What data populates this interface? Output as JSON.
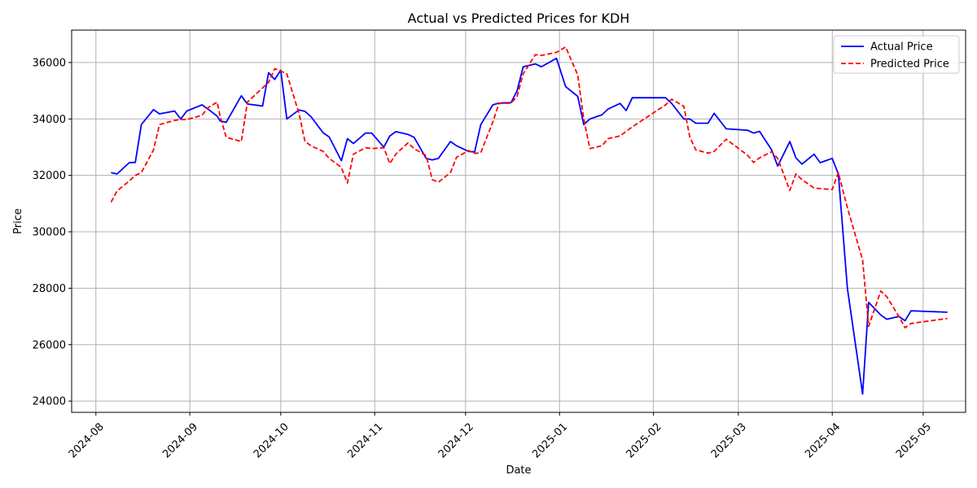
{
  "chart_data": {
    "type": "line",
    "title": "Actual vs Predicted Prices for KDH",
    "xlabel": "Date",
    "ylabel": "Price",
    "xlim": [
      "2024-07-24",
      "2025-05-15"
    ],
    "ylim": [
      23600,
      37150
    ],
    "x_ticks": [
      "2024-08-01",
      "2024-09-01",
      "2024-10-01",
      "2024-11-01",
      "2024-12-01",
      "2025-01-01",
      "2025-02-01",
      "2025-03-01",
      "2025-04-01",
      "2025-05-01"
    ],
    "x_tick_labels": [
      "2024-08",
      "2024-09",
      "2024-10",
      "2024-11",
      "2024-12",
      "2025-01",
      "2025-02",
      "2025-03",
      "2025-04",
      "2025-05"
    ],
    "y_ticks": [
      24000,
      26000,
      28000,
      30000,
      32000,
      34000,
      36000
    ],
    "grid": true,
    "legend_position": "top-right",
    "series": [
      {
        "name": "Actual Price",
        "color": "#0000ff",
        "style": "solid",
        "points": [
          [
            "2024-08-06",
            32100
          ],
          [
            "2024-08-08",
            32050
          ],
          [
            "2024-08-12",
            32450
          ],
          [
            "2024-08-14",
            32460
          ],
          [
            "2024-08-16",
            33800
          ],
          [
            "2024-08-20",
            34330
          ],
          [
            "2024-08-22",
            34180
          ],
          [
            "2024-08-27",
            34280
          ],
          [
            "2024-08-29",
            34000
          ],
          [
            "2024-08-31",
            34280
          ],
          [
            "2024-09-05",
            34500
          ],
          [
            "2024-09-07",
            34350
          ],
          [
            "2024-09-10",
            34100
          ],
          [
            "2024-09-11",
            33930
          ],
          [
            "2024-09-13",
            33880
          ],
          [
            "2024-09-18",
            34820
          ],
          [
            "2024-09-20",
            34530
          ],
          [
            "2024-09-25",
            34460
          ],
          [
            "2024-09-27",
            35640
          ],
          [
            "2024-09-29",
            35400
          ],
          [
            "2024-10-01",
            35730
          ],
          [
            "2024-10-03",
            34000
          ],
          [
            "2024-10-07",
            34320
          ],
          [
            "2024-10-09",
            34270
          ],
          [
            "2024-10-11",
            34080
          ],
          [
            "2024-10-15",
            33510
          ],
          [
            "2024-10-17",
            33360
          ],
          [
            "2024-10-21",
            32520
          ],
          [
            "2024-10-23",
            33300
          ],
          [
            "2024-10-25",
            33130
          ],
          [
            "2024-10-29",
            33500
          ],
          [
            "2024-10-31",
            33500
          ],
          [
            "2024-11-04",
            33000
          ],
          [
            "2024-11-06",
            33400
          ],
          [
            "2024-11-08",
            33550
          ],
          [
            "2024-11-12",
            33450
          ],
          [
            "2024-11-14",
            33350
          ],
          [
            "2024-11-18",
            32600
          ],
          [
            "2024-11-20",
            32550
          ],
          [
            "2024-11-22",
            32600
          ],
          [
            "2024-11-26",
            33200
          ],
          [
            "2024-11-28",
            33050
          ],
          [
            "2024-12-02",
            32850
          ],
          [
            "2024-12-04",
            32830
          ],
          [
            "2024-12-06",
            33800
          ],
          [
            "2024-12-10",
            34500
          ],
          [
            "2024-12-12",
            34560
          ],
          [
            "2024-12-16",
            34580
          ],
          [
            "2024-12-18",
            35000
          ],
          [
            "2024-12-20",
            35850
          ],
          [
            "2024-12-24",
            35950
          ],
          [
            "2024-12-26",
            35850
          ],
          [
            "2024-12-31",
            36150
          ],
          [
            "2025-01-03",
            35150
          ],
          [
            "2025-01-07",
            34800
          ],
          [
            "2025-01-09",
            33800
          ],
          [
            "2025-01-11",
            34000
          ],
          [
            "2025-01-15",
            34150
          ],
          [
            "2025-01-17",
            34350
          ],
          [
            "2025-01-21",
            34550
          ],
          [
            "2025-01-23",
            34300
          ],
          [
            "2025-01-25",
            34750
          ],
          [
            "2025-02-05",
            34750
          ],
          [
            "2025-02-07",
            34550
          ],
          [
            "2025-02-11",
            34000
          ],
          [
            "2025-02-13",
            34000
          ],
          [
            "2025-02-15",
            33850
          ],
          [
            "2025-02-19",
            33850
          ],
          [
            "2025-02-21",
            34200
          ],
          [
            "2025-02-25",
            33650
          ],
          [
            "2025-03-04",
            33600
          ],
          [
            "2025-03-06",
            33500
          ],
          [
            "2025-03-08",
            33560
          ],
          [
            "2025-03-12",
            32900
          ],
          [
            "2025-03-14",
            32330
          ],
          [
            "2025-03-18",
            33200
          ],
          [
            "2025-03-20",
            32620
          ],
          [
            "2025-03-22",
            32400
          ],
          [
            "2025-03-26",
            32750
          ],
          [
            "2025-03-28",
            32450
          ],
          [
            "2025-04-01",
            32600
          ],
          [
            "2025-04-03",
            32050
          ],
          [
            "2025-04-06",
            28000
          ],
          [
            "2025-04-11",
            24250
          ],
          [
            "2025-04-13",
            27500
          ],
          [
            "2025-04-17",
            27050
          ],
          [
            "2025-04-19",
            26900
          ],
          [
            "2025-04-23",
            27000
          ],
          [
            "2025-04-25",
            26850
          ],
          [
            "2025-04-27",
            27200
          ],
          [
            "2025-05-09",
            27150
          ]
        ]
      },
      {
        "name": "Predicted Price",
        "color": "#ff0000",
        "style": "dashed",
        "points": [
          [
            "2024-08-06",
            31050
          ],
          [
            "2024-08-08",
            31450
          ],
          [
            "2024-08-12",
            31800
          ],
          [
            "2024-08-14",
            32000
          ],
          [
            "2024-08-16",
            32100
          ],
          [
            "2024-08-20",
            32900
          ],
          [
            "2024-08-22",
            33800
          ],
          [
            "2024-08-27",
            33950
          ],
          [
            "2024-08-29",
            33980
          ],
          [
            "2024-08-31",
            33980
          ],
          [
            "2024-09-05",
            34130
          ],
          [
            "2024-09-07",
            34400
          ],
          [
            "2024-09-10",
            34600
          ],
          [
            "2024-09-11",
            34100
          ],
          [
            "2024-09-13",
            33350
          ],
          [
            "2024-09-18",
            33200
          ],
          [
            "2024-09-20",
            34600
          ],
          [
            "2024-09-25",
            35100
          ],
          [
            "2024-09-27",
            35300
          ],
          [
            "2024-09-29",
            35780
          ],
          [
            "2024-10-01",
            35700
          ],
          [
            "2024-10-03",
            35600
          ],
          [
            "2024-10-07",
            34200
          ],
          [
            "2024-10-09",
            33200
          ],
          [
            "2024-10-11",
            33050
          ],
          [
            "2024-10-15",
            32850
          ],
          [
            "2024-10-17",
            32600
          ],
          [
            "2024-10-21",
            32280
          ],
          [
            "2024-10-23",
            31730
          ],
          [
            "2024-10-25",
            32750
          ],
          [
            "2024-10-29",
            32980
          ],
          [
            "2024-10-31",
            32950
          ],
          [
            "2024-11-04",
            32980
          ],
          [
            "2024-11-06",
            32420
          ],
          [
            "2024-11-08",
            32760
          ],
          [
            "2024-11-12",
            33150
          ],
          [
            "2024-11-14",
            32950
          ],
          [
            "2024-11-18",
            32700
          ],
          [
            "2024-11-20",
            31850
          ],
          [
            "2024-11-22",
            31760
          ],
          [
            "2024-11-26",
            32100
          ],
          [
            "2024-11-28",
            32640
          ],
          [
            "2024-12-02",
            32880
          ],
          [
            "2024-12-04",
            32780
          ],
          [
            "2024-12-06",
            32800
          ],
          [
            "2024-12-10",
            33900
          ],
          [
            "2024-12-12",
            34550
          ],
          [
            "2024-12-16",
            34560
          ],
          [
            "2024-12-18",
            34800
          ],
          [
            "2024-12-20",
            35600
          ],
          [
            "2024-12-24",
            36280
          ],
          [
            "2024-12-26",
            36250
          ],
          [
            "2024-12-31",
            36360
          ],
          [
            "2025-01-03",
            36550
          ],
          [
            "2025-01-07",
            35560
          ],
          [
            "2025-01-09",
            34000
          ],
          [
            "2025-01-11",
            32950
          ],
          [
            "2025-01-15",
            33050
          ],
          [
            "2025-01-17",
            33300
          ],
          [
            "2025-01-21",
            33400
          ],
          [
            "2025-01-23",
            33560
          ],
          [
            "2025-01-25",
            33720
          ],
          [
            "2025-02-05",
            34500
          ],
          [
            "2025-02-07",
            34700
          ],
          [
            "2025-02-11",
            34450
          ],
          [
            "2025-02-13",
            33350
          ],
          [
            "2025-02-15",
            32900
          ],
          [
            "2025-02-19",
            32790
          ],
          [
            "2025-02-21",
            32850
          ],
          [
            "2025-02-25",
            33280
          ],
          [
            "2025-03-04",
            32720
          ],
          [
            "2025-03-06",
            32460
          ],
          [
            "2025-03-08",
            32620
          ],
          [
            "2025-03-12",
            32840
          ],
          [
            "2025-03-14",
            32600
          ],
          [
            "2025-03-18",
            31470
          ],
          [
            "2025-03-20",
            32050
          ],
          [
            "2025-03-22",
            31850
          ],
          [
            "2025-03-26",
            31550
          ],
          [
            "2025-03-28",
            31530
          ],
          [
            "2025-04-01",
            31500
          ],
          [
            "2025-04-03",
            32100
          ],
          [
            "2025-04-06",
            30850
          ],
          [
            "2025-04-11",
            29000
          ],
          [
            "2025-04-13",
            26650
          ],
          [
            "2025-04-17",
            27900
          ],
          [
            "2025-04-19",
            27700
          ],
          [
            "2025-04-23",
            27000
          ],
          [
            "2025-04-25",
            26600
          ],
          [
            "2025-04-27",
            26750
          ],
          [
            "2025-05-09",
            26930
          ]
        ]
      }
    ]
  }
}
